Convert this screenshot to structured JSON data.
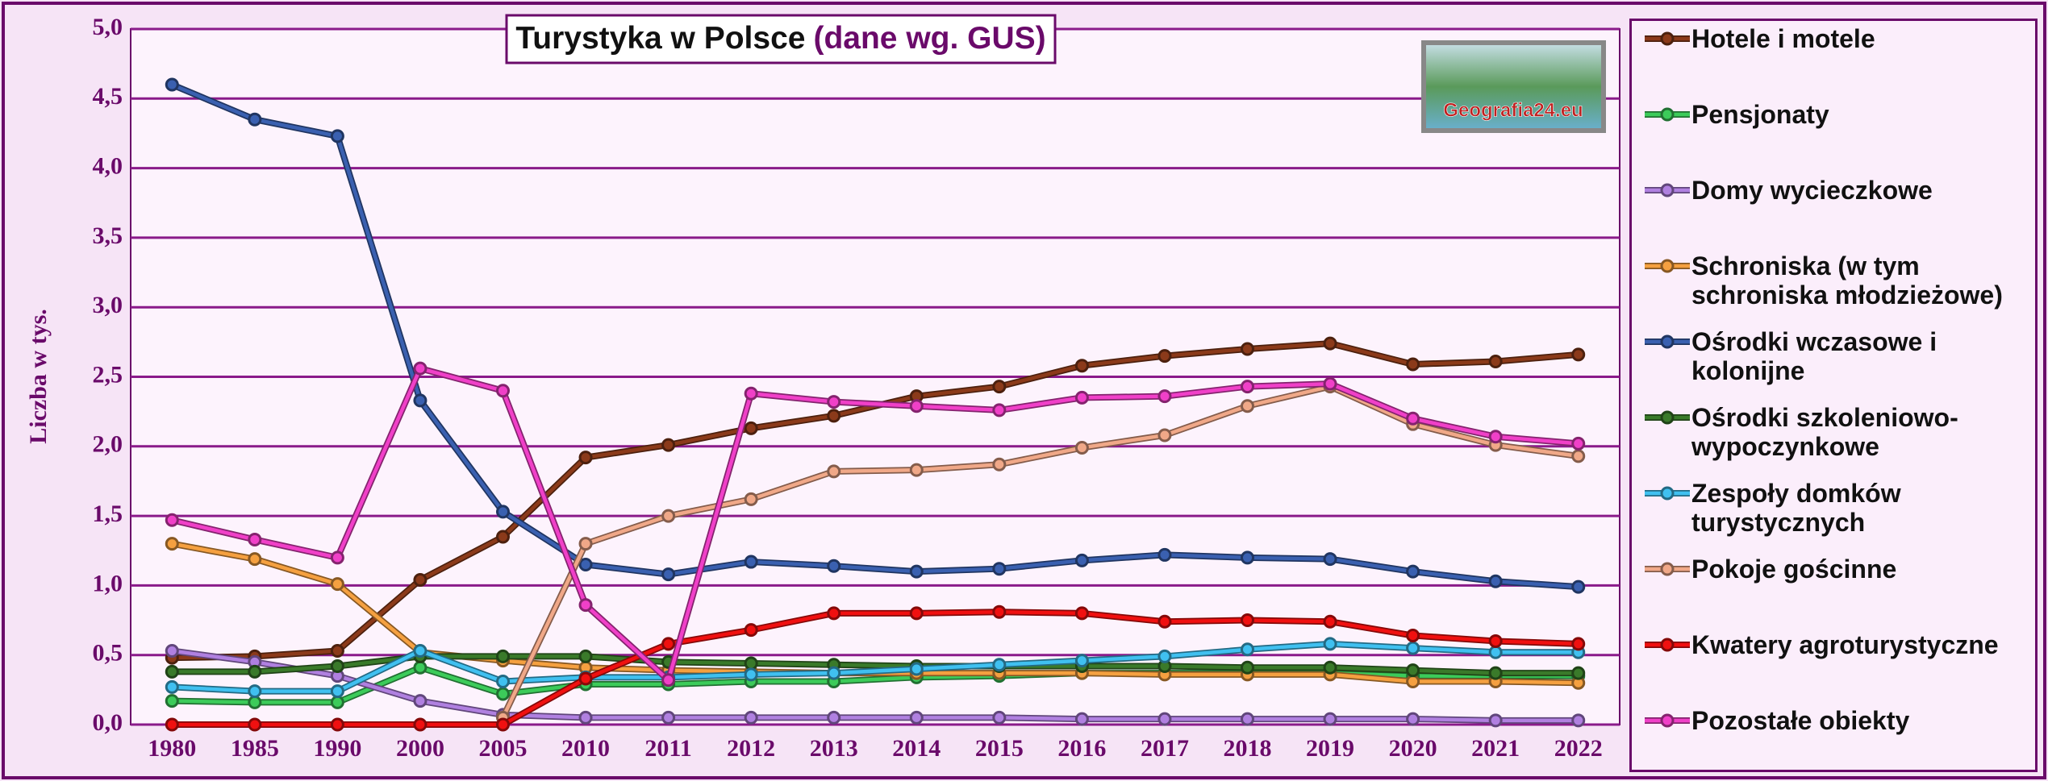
{
  "chart_data": {
    "type": "line",
    "title": "Turystyka w Polsce",
    "subtitle": "(dane wg. GUS)",
    "logo_text": "Geografia24.eu",
    "ylabel": "Liczba w tys.",
    "categories": [
      "1980",
      "1985",
      "1990",
      "2000",
      "2005",
      "2010",
      "2011",
      "2012",
      "2013",
      "2014",
      "2015",
      "2016",
      "2017",
      "2018",
      "2019",
      "2020",
      "2021",
      "2022"
    ],
    "ylim": [
      0,
      5
    ],
    "yticks": [
      {
        "value": 0,
        "label": "0,0"
      },
      {
        "value": 0.5,
        "label": "0,5"
      },
      {
        "value": 1,
        "label": "1,0"
      },
      {
        "value": 1.5,
        "label": "1,5"
      },
      {
        "value": 2,
        "label": "2,0"
      },
      {
        "value": 2.5,
        "label": "2,5"
      },
      {
        "value": 3,
        "label": "3,0"
      },
      {
        "value": 3.5,
        "label": "3,5"
      },
      {
        "value": 4,
        "label": "4,0"
      },
      {
        "value": 4.5,
        "label": "4,5"
      },
      {
        "value": 5,
        "label": "5,0"
      }
    ],
    "grid": true,
    "legend": "right",
    "series": [
      {
        "name": "Hotele i motele",
        "color": "#8b3a1a",
        "values": [
          0.48,
          0.49,
          0.53,
          1.04,
          1.35,
          1.92,
          2.01,
          2.13,
          2.22,
          2.36,
          2.43,
          2.58,
          2.65,
          2.7,
          2.74,
          2.59,
          2.61,
          2.66
        ]
      },
      {
        "name": "Pensjonaty",
        "color": "#3ccb5a",
        "values": [
          0.17,
          0.16,
          0.16,
          0.41,
          0.22,
          0.29,
          0.29,
          0.31,
          0.31,
          0.34,
          0.35,
          0.37,
          0.37,
          0.37,
          0.37,
          0.35,
          0.35,
          0.35
        ]
      },
      {
        "name": "Domy wycieczkowe",
        "color": "#b080e0",
        "values": [
          0.53,
          0.45,
          0.35,
          0.17,
          0.07,
          0.05,
          0.05,
          0.05,
          0.05,
          0.05,
          0.05,
          0.04,
          0.04,
          0.04,
          0.04,
          0.04,
          0.03,
          0.03
        ]
      },
      {
        "name": "Schroniska (w tym schroniska młodzieżowe)",
        "color": "#f5a040",
        "values": [
          1.3,
          1.19,
          1.01,
          0.52,
          0.46,
          0.41,
          0.39,
          0.38,
          0.37,
          0.37,
          0.37,
          0.37,
          0.36,
          0.36,
          0.36,
          0.31,
          0.31,
          0.3
        ]
      },
      {
        "name": "Ośrodki wczasowe i kolonijne",
        "color": "#3a60b0",
        "values": [
          4.6,
          4.35,
          4.23,
          2.33,
          1.53,
          1.15,
          1.08,
          1.17,
          1.14,
          1.1,
          1.12,
          1.18,
          1.22,
          1.2,
          1.19,
          1.1,
          1.03,
          0.99
        ]
      },
      {
        "name": "Ośrodki szkoleniowo-wypoczynkowe",
        "color": "#3a7a2a",
        "values": [
          0.38,
          0.38,
          0.42,
          0.49,
          0.49,
          0.49,
          0.45,
          0.44,
          0.43,
          0.42,
          0.42,
          0.42,
          0.42,
          0.41,
          0.41,
          0.39,
          0.37,
          0.37
        ]
      },
      {
        "name": "Zespoły  domków turystycznych",
        "color": "#40c0f0",
        "values": [
          0.27,
          0.24,
          0.24,
          0.53,
          0.31,
          0.34,
          0.34,
          0.36,
          0.37,
          0.4,
          0.43,
          0.46,
          0.49,
          0.54,
          0.58,
          0.55,
          0.52,
          0.52
        ]
      },
      {
        "name": "Pokoje gościnne",
        "color": "#f0a888",
        "values": [
          null,
          null,
          null,
          null,
          0.05,
          1.3,
          1.5,
          1.62,
          1.82,
          1.83,
          1.87,
          1.99,
          2.08,
          2.29,
          2.43,
          2.16,
          2.01,
          1.93
        ]
      },
      {
        "name": "Kwatery agroturystyczne",
        "color": "#f01010",
        "values": [
          0,
          0,
          0,
          0,
          0,
          0.33,
          0.58,
          0.68,
          0.8,
          0.8,
          0.81,
          0.8,
          0.74,
          0.75,
          0.74,
          0.64,
          0.6,
          0.58
        ]
      },
      {
        "name": "Pozostałe obiekty",
        "color": "#f040c8",
        "values": [
          1.47,
          1.33,
          1.2,
          2.56,
          2.4,
          0.86,
          0.32,
          2.38,
          2.32,
          2.29,
          2.26,
          2.35,
          2.36,
          2.43,
          2.45,
          2.2,
          2.07,
          2.02
        ]
      }
    ]
  }
}
